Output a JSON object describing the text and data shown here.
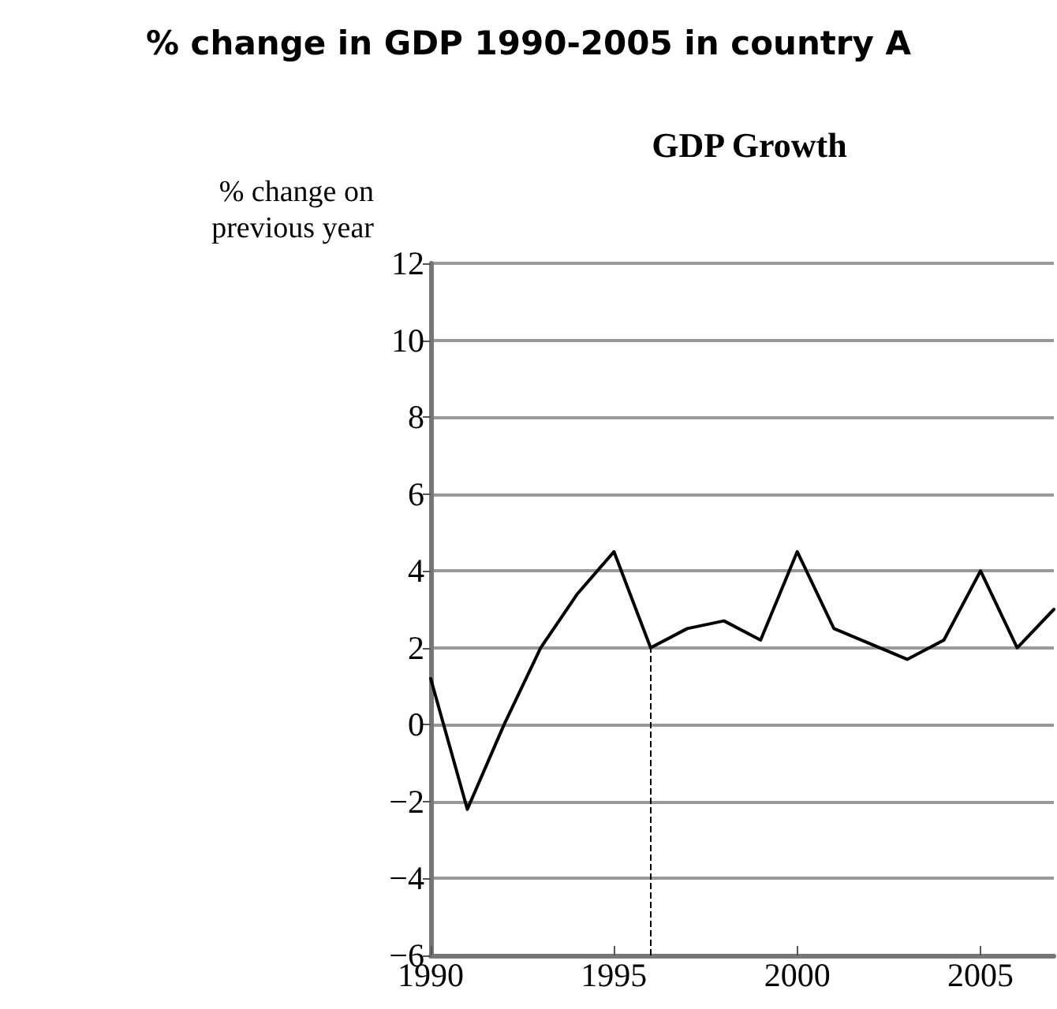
{
  "chart_data": {
    "type": "line",
    "title": "% change in GDP 1990-2005 in country A",
    "subtitle": "GDP Growth",
    "ylabel": "% change on\nprevious year",
    "x": [
      1990,
      1991,
      1992,
      1993,
      1994,
      1995,
      1996,
      1997,
      1998,
      1999,
      2000,
      2001,
      2002,
      2003,
      2004,
      2005,
      2006,
      2007
    ],
    "series": [
      {
        "color": "#000000",
        "values": [
          1.2,
          -2.2,
          0,
          2.0,
          3.4,
          4.5,
          2.0,
          2.5,
          2.7,
          2.2,
          4.5,
          2.5,
          2.1,
          1.7,
          2.2,
          4.0,
          2.0,
          3.0
        ]
      }
    ],
    "xlim": [
      1990,
      2007
    ],
    "xticks": [
      1990,
      1995,
      2000,
      2005
    ],
    "ylim": [
      -6,
      12
    ],
    "yticks": [
      -6,
      -4,
      -2,
      0,
      2,
      4,
      6,
      8,
      10,
      12
    ],
    "ref_lines": [
      {
        "axis": "x",
        "value": 1996,
        "color": "#000000",
        "line_style": "dashed"
      }
    ],
    "grid": "y",
    "marker": "none",
    "line_style": "solid"
  }
}
